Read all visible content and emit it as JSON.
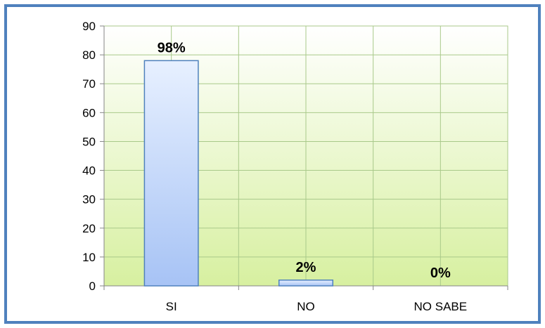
{
  "chart_data": {
    "type": "bar",
    "categories": [
      "SI",
      "NO",
      "NO SABE"
    ],
    "values": [
      78,
      2,
      0
    ],
    "data_labels": [
      "98%",
      "2%",
      "0%"
    ],
    "title": "",
    "xlabel": "",
    "ylabel": "",
    "ylim": [
      0,
      90
    ],
    "yticks": [
      0,
      10,
      20,
      30,
      40,
      50,
      60,
      70,
      80,
      90
    ],
    "grid": true,
    "legend": "none",
    "colors": {
      "frame_border": "#4f81bd",
      "plot_bg_top": "#ffffff",
      "plot_bg_bottom": "#d7f0a0",
      "grid": "#a9c98a",
      "bar_fill_top": "#e7f0ff",
      "bar_fill_bottom": "#a7c3f5",
      "bar_stroke": "#4f81bd"
    }
  }
}
